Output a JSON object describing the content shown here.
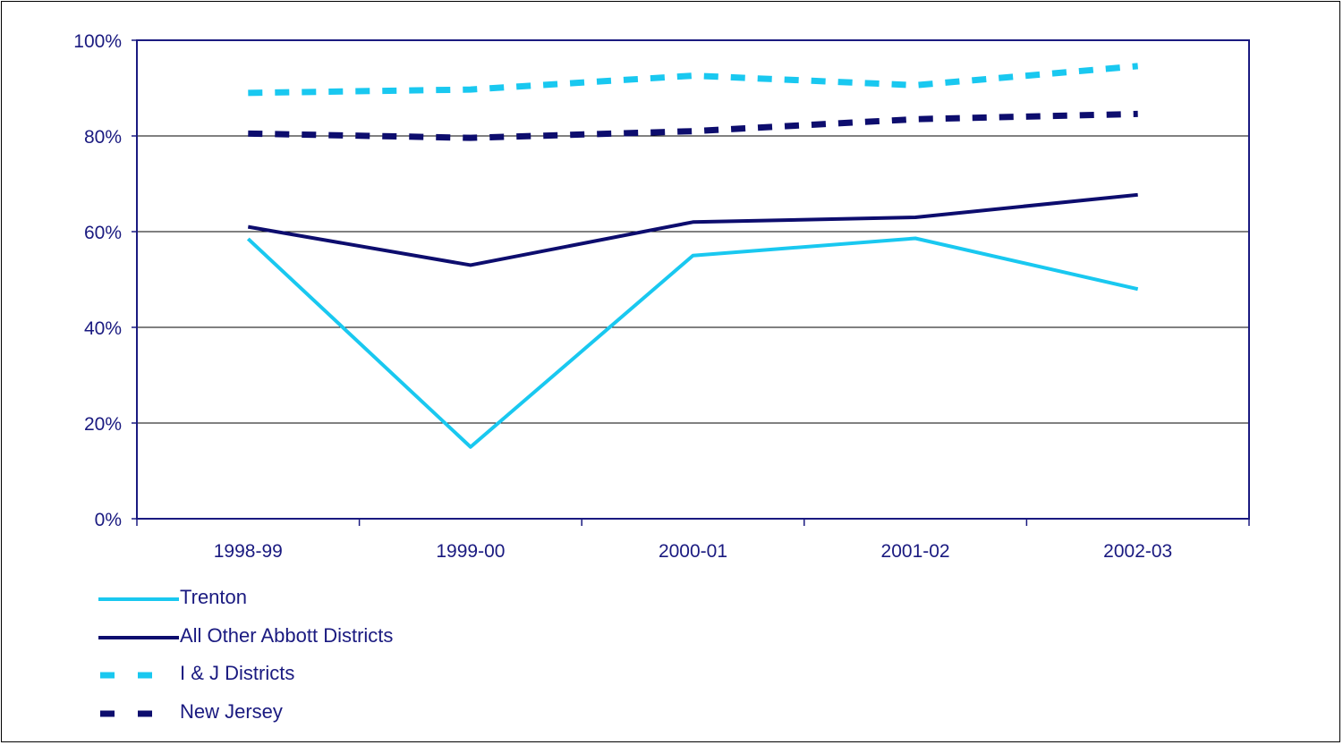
{
  "chart_data": {
    "type": "line",
    "categories": [
      "1998-99",
      "1999-00",
      "2000-01",
      "2001-02",
      "2002-03"
    ],
    "series": [
      {
        "name": "Trenton",
        "values": [
          58.5,
          15,
          55,
          58.6,
          48
        ],
        "color": "#19c8f0",
        "dash": "solid"
      },
      {
        "name": "All Other Abbott Districts",
        "values": [
          61,
          53,
          62,
          63,
          67.7
        ],
        "color": "#0d0d6e",
        "dash": "solid"
      },
      {
        "name": "I & J Districts",
        "values": [
          89,
          89.7,
          92.6,
          90.6,
          94.6
        ],
        "color": "#19c8f0",
        "dash": "dashed"
      },
      {
        "name": "New Jersey",
        "values": [
          80.5,
          79.6,
          81,
          83.5,
          84.6
        ],
        "color": "#0d0d6e",
        "dash": "dashed"
      }
    ],
    "title": "",
    "xlabel": "",
    "ylabel": "",
    "ylim": [
      0,
      100
    ],
    "yticks": [
      "0%",
      "20%",
      "40%",
      "60%",
      "80%",
      "100%"
    ],
    "grid": true,
    "legend_position": "bottom-left"
  }
}
